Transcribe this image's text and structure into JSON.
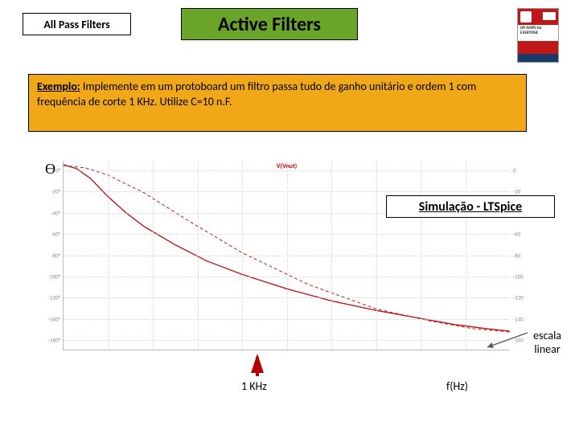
{
  "header": {
    "sub_title": "All Pass Filters",
    "main_title": "Active Filters",
    "book_text": "OP AMPS for EVERYONE"
  },
  "example": {
    "title": "Exemplo:",
    "body": "Implemente em um protoboard um filtro passa tudo de ganho unitário e ordem 1 com  frequência de corte 1 KHz.  Utilize C=10 n.F."
  },
  "theta_symbol": "ϴ",
  "chart": {
    "title": "V(Vout)",
    "type": "line",
    "x_axis": {
      "min": 0,
      "max": 10000,
      "tick_step": 1000,
      "scale": "linear"
    },
    "y_axis_left": {
      "ticks": [
        "0°",
        "-20°",
        "-40°",
        "-60°",
        "-80°",
        "-100°",
        "-120°",
        "-140°",
        "-160°"
      ],
      "positions_pct": [
        5,
        16.25,
        27.5,
        38.75,
        50,
        61.25,
        72.5,
        83.75,
        95
      ]
    },
    "y_axis_right": {
      "ticks": [
        "0",
        "-20",
        "-40",
        "-60",
        "-80",
        "-100",
        "-120",
        "-140",
        "-160"
      ],
      "positions_pct": [
        5,
        16.25,
        27.5,
        38.75,
        50,
        61.25,
        72.5,
        83.75,
        95
      ]
    },
    "grid_v_pct": [
      10,
      20,
      30,
      40,
      50,
      60,
      70,
      80,
      90
    ],
    "grid_h_pct": [
      5,
      16.25,
      27.5,
      38.75,
      50,
      61.25,
      72.5,
      83.75,
      95
    ],
    "curve_solid": {
      "color": "#c01818",
      "width": 1.4,
      "points": [
        [
          0,
          5
        ],
        [
          3,
          10
        ],
        [
          6,
          22
        ],
        [
          10,
          45
        ],
        [
          14,
          65
        ],
        [
          18,
          82
        ],
        [
          25,
          105
        ],
        [
          32,
          125
        ],
        [
          40,
          142
        ],
        [
          50,
          160
        ],
        [
          60,
          175
        ],
        [
          70,
          187
        ],
        [
          80,
          197
        ],
        [
          88,
          205
        ],
        [
          95,
          210
        ],
        [
          100,
          213
        ]
      ]
    },
    "curve_dashed": {
      "color": "#c01818",
      "width": 1.0,
      "dash": "4 3",
      "points": [
        [
          0,
          6
        ],
        [
          5,
          9
        ],
        [
          10,
          18
        ],
        [
          18,
          40
        ],
        [
          28,
          75
        ],
        [
          40,
          115
        ],
        [
          55,
          155
        ],
        [
          70,
          185
        ],
        [
          82,
          200
        ],
        [
          92,
          210
        ],
        [
          100,
          214
        ]
      ]
    },
    "background_color": "#ffffff",
    "grid_color": "#d8d8d8"
  },
  "sim_label": "Simulação - LTSpice",
  "escala": {
    "line1": "escala",
    "line2": "linear"
  },
  "marker_1khz": "1 KHz",
  "f_hz": "f(Hz)"
}
